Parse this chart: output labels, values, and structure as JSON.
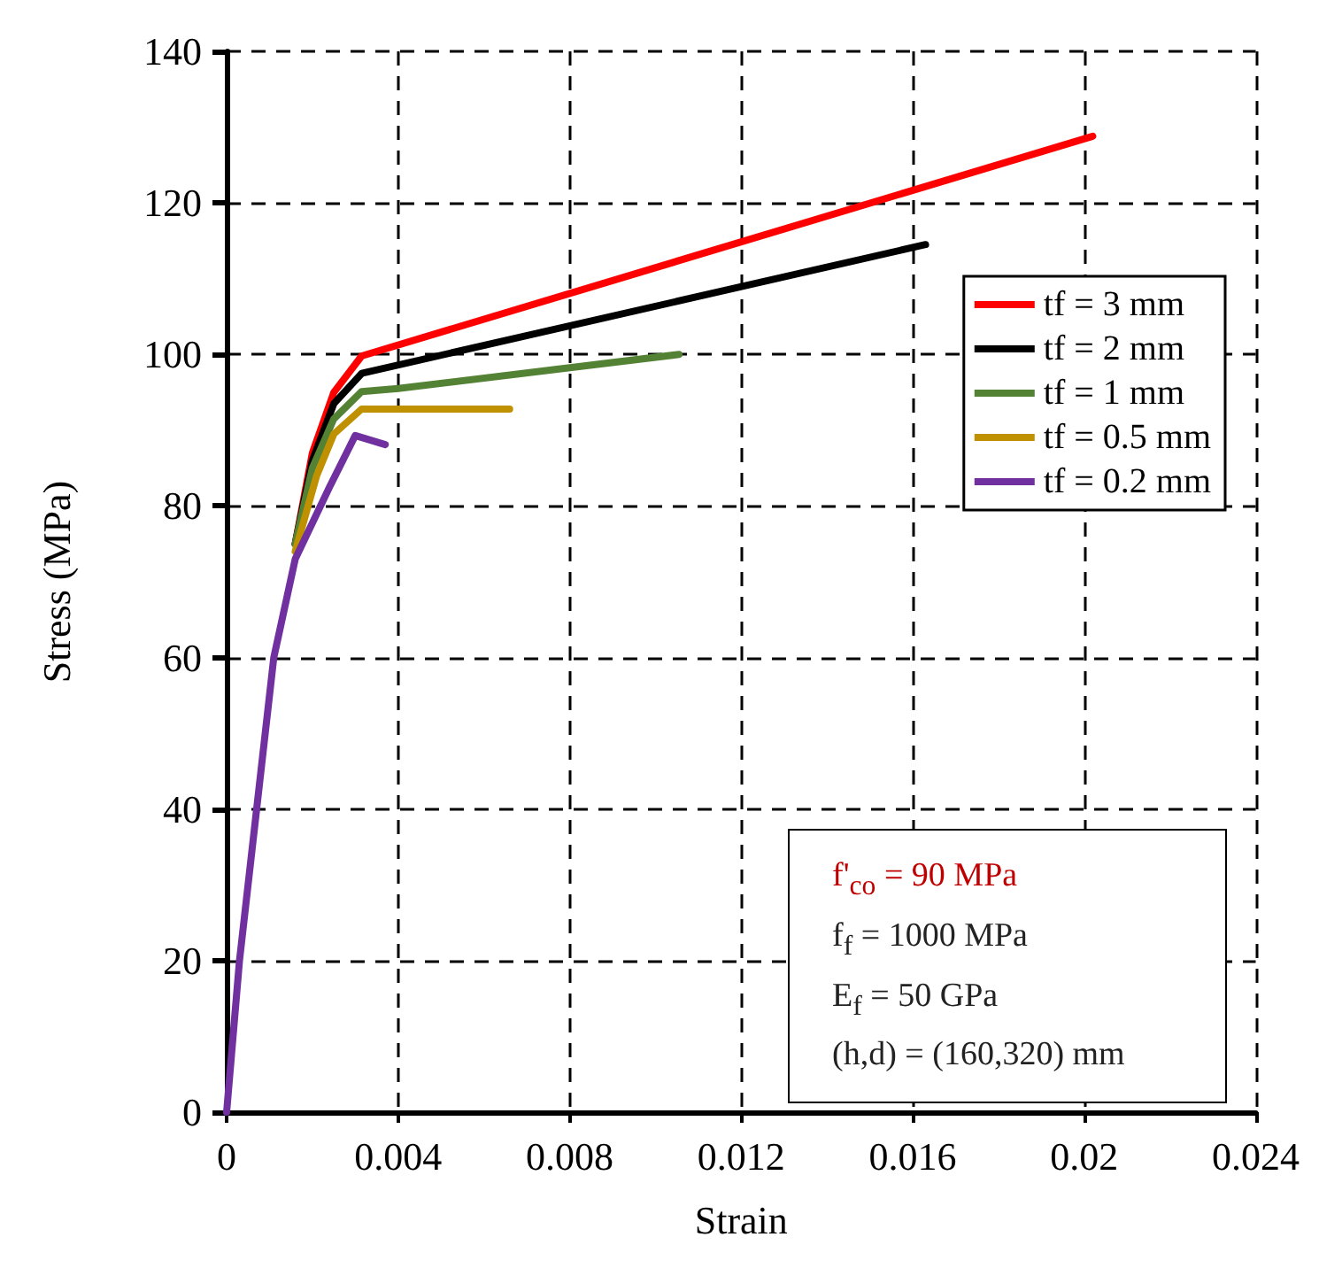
{
  "chart_data": {
    "type": "line",
    "xlabel": "Strain",
    "ylabel": "Stress (MPa)",
    "xlim": [
      0,
      0.024
    ],
    "xticks": [
      0,
      0.004,
      0.008,
      0.012,
      0.016,
      0.02,
      0.024
    ],
    "ylim": [
      0,
      140
    ],
    "yticks": [
      0,
      20,
      40,
      60,
      80,
      100,
      120,
      140
    ],
    "grid": true,
    "legend": "top right",
    "marker": "none",
    "line_style": "solid",
    "series": [
      {
        "name": "tf = 3 mm",
        "color": "#ff0000",
        "x": [
          0.0016,
          0.002,
          0.0025,
          0.00315,
          0.0202
        ],
        "values": [
          75,
          87,
          95,
          99.8,
          128.8
        ]
      },
      {
        "name": "tf = 2 mm",
        "color": "#000000",
        "x": [
          0.0016,
          0.002,
          0.0025,
          0.00315,
          0.0163
        ],
        "values": [
          75,
          86,
          93.5,
          97.5,
          114.5
        ]
      },
      {
        "name": "tf = 1 mm",
        "color": "#548235",
        "x": [
          0.0016,
          0.002,
          0.0025,
          0.00315,
          0.004,
          0.01055
        ],
        "values": [
          75,
          85,
          91.5,
          95.1,
          95.5,
          100
        ]
      },
      {
        "name": "tf = 0.5 mm",
        "color": "#bf9000",
        "x": [
          0.0016,
          0.0021,
          0.0025,
          0.00315,
          0.004,
          0.0066
        ],
        "values": [
          74,
          84,
          89.5,
          92.8,
          92.8,
          92.8
        ]
      },
      {
        "name": "tf = 0.2 mm",
        "color": "#7030a0",
        "x": [
          0,
          0.0003,
          0.0007,
          0.0011,
          0.0016,
          0.0024,
          0.003,
          0.0037
        ],
        "values": [
          0,
          20,
          40,
          60,
          73,
          82.5,
          89.3,
          88.1
        ]
      }
    ],
    "annotations": [
      "f'$_{co}$ = 90 MPa",
      "f$_{f}$ = 1000 MPa",
      "E$_{f}$ = 50 GPa",
      "(h,d) = (160,320) mm"
    ]
  }
}
